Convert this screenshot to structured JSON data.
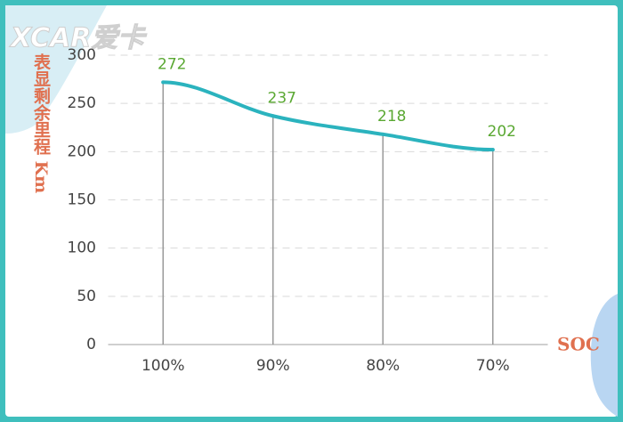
{
  "watermark": "XCAR爱卡",
  "chart_data": {
    "type": "line",
    "y_label": "表显剩余里程 Km",
    "x_label": "SOC",
    "categories": [
      "100%",
      "90%",
      "80%",
      "70%"
    ],
    "values": [
      272,
      237,
      218,
      202
    ],
    "color": "#2bb3be",
    "label_color": "#5aa832",
    "ylim": [
      0,
      300
    ],
    "yticks": [
      0,
      50,
      100,
      150,
      200,
      250,
      300
    ],
    "grid": true
  }
}
